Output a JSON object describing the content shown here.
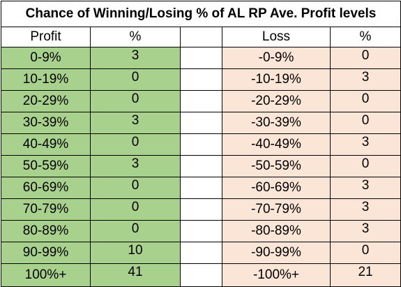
{
  "title": "Chance of Winning/Losing % of AL RP Ave. Profit levels",
  "headers": {
    "profit": "Profit",
    "profit_pct": "%",
    "loss": "Loss",
    "loss_pct": "%"
  },
  "rows": [
    {
      "profit": "0-9%",
      "profit_pct": "3",
      "loss": "-0-9%",
      "loss_pct": "0"
    },
    {
      "profit": "10-19%",
      "profit_pct": "0",
      "loss": "-10-19%",
      "loss_pct": "3"
    },
    {
      "profit": "20-29%",
      "profit_pct": "0",
      "loss": "-20-29%",
      "loss_pct": "0"
    },
    {
      "profit": "30-39%",
      "profit_pct": "3",
      "loss": "-30-39%",
      "loss_pct": "0"
    },
    {
      "profit": "40-49%",
      "profit_pct": "0",
      "loss": "-40-49%",
      "loss_pct": "3"
    },
    {
      "profit": "50-59%",
      "profit_pct": "3",
      "loss": "-50-59%",
      "loss_pct": "0"
    },
    {
      "profit": "60-69%",
      "profit_pct": "0",
      "loss": "-60-69%",
      "loss_pct": "3"
    },
    {
      "profit": "70-79%",
      "profit_pct": "0",
      "loss": "-70-79%",
      "loss_pct": "3"
    },
    {
      "profit": "80-89%",
      "profit_pct": "0",
      "loss": "-80-89%",
      "loss_pct": "3"
    },
    {
      "profit": "90-99%",
      "profit_pct": "10",
      "loss": "-90-99%",
      "loss_pct": "0"
    },
    {
      "profit": "100%+",
      "profit_pct": "41",
      "loss": "-100%+",
      "loss_pct": "21"
    }
  ],
  "colors": {
    "profit_fill": "#a9d18e",
    "loss_fill": "#fbe5d6",
    "border": "#000000"
  }
}
